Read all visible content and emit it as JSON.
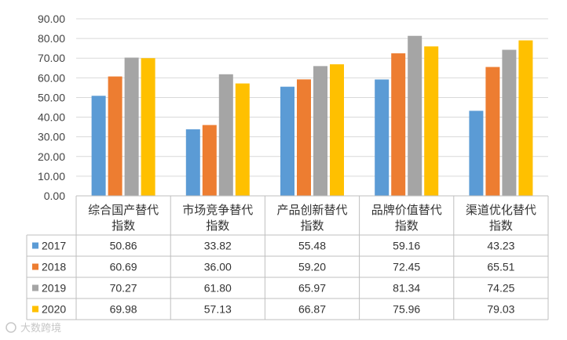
{
  "chart_data": {
    "type": "bar",
    "title": "",
    "xlabel": "",
    "ylabel": "",
    "ylim": [
      0,
      90
    ],
    "y_ticks": [
      "0.00",
      "10.00",
      "20.00",
      "30.00",
      "40.00",
      "50.00",
      "60.00",
      "70.00",
      "80.00",
      "90.00"
    ],
    "categories": [
      [
        "综合国产替代",
        "指数"
      ],
      [
        "市场竞争替代",
        "指数"
      ],
      [
        "产品创新替代",
        "指数"
      ],
      [
        "品牌价值替代",
        "指数"
      ],
      [
        "渠道优化替代",
        "指数"
      ]
    ],
    "series": [
      {
        "name": "2017",
        "color": "#5B9BD5",
        "values": [
          50.86,
          33.82,
          55.48,
          59.16,
          43.23
        ],
        "labels": [
          "50.86",
          "33.82",
          "55.48",
          "59.16",
          "43.23"
        ]
      },
      {
        "name": "2018",
        "color": "#ED7D31",
        "values": [
          60.69,
          36.0,
          59.2,
          72.45,
          65.51
        ],
        "labels": [
          "60.69",
          "36.00",
          "59.20",
          "72.45",
          "65.51"
        ]
      },
      {
        "name": "2019",
        "color": "#A5A5A5",
        "values": [
          70.27,
          61.8,
          65.97,
          81.34,
          74.25
        ],
        "labels": [
          "70.27",
          "61.80",
          "65.97",
          "81.34",
          "74.25"
        ]
      },
      {
        "name": "2020",
        "color": "#FFC000",
        "values": [
          69.98,
          57.13,
          66.87,
          75.96,
          79.03
        ],
        "labels": [
          "69.98",
          "57.13",
          "66.87",
          "75.96",
          "79.03"
        ]
      }
    ],
    "grid": true,
    "legend": "data-table"
  },
  "watermark": "大数跨境",
  "colors": {
    "grid": "#D9D9D9",
    "border": "#BFBFBF"
  }
}
